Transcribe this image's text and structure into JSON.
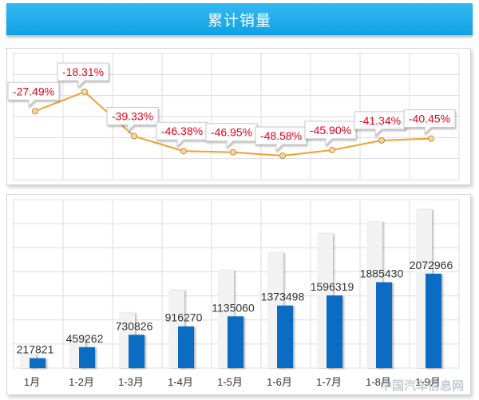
{
  "header": {
    "title": "累计销量"
  },
  "colors": {
    "line": "#f0a030",
    "bar_back": "#f2f2f2",
    "bar_front": "#0b6cc4",
    "pct_text": "#e8001c",
    "header_bg": "#1aa8eb"
  },
  "chart_data": [
    {
      "type": "line",
      "title": "累计销量",
      "categories": [
        "1月",
        "1-2月",
        "1-3月",
        "1-4月",
        "1-5月",
        "1-6月",
        "1-7月",
        "1-8月",
        "1-9月"
      ],
      "series": [
        {
          "values": [
            -27.49,
            -18.31,
            -39.33,
            -46.38,
            -46.95,
            -48.58,
            -45.9,
            -41.34,
            -40.45
          ]
        }
      ],
      "data_labels": [
        "-27.49%",
        "-18.31%",
        "-39.33%",
        "-46.38%",
        "-46.95%",
        "-48.58%",
        "-45.90%",
        "-41.34%",
        "-40.45%"
      ],
      "grid": true
    },
    {
      "type": "bar",
      "categories": [
        "1月",
        "1-2月",
        "1-3月",
        "1-4月",
        "1-5月",
        "1-6月",
        "1-7月",
        "1-8月",
        "1-9月"
      ],
      "series": [
        {
          "values": [
            300000,
            680000,
            1205000,
            1710000,
            2140000,
            2530000,
            2950000,
            3210000,
            3480000
          ]
        },
        {
          "values": [
            217821,
            459262,
            730826,
            916270,
            1135060,
            1373498,
            1596319,
            1885430,
            2072966
          ]
        }
      ],
      "data_labels": [
        "217821",
        "459262",
        "730826",
        "916270",
        "1135060",
        "1373498",
        "1596319",
        "1885430",
        "2072966"
      ],
      "ylim": [
        0,
        3700000
      ],
      "grid": true
    }
  ],
  "watermark": "中国汽车信息网"
}
